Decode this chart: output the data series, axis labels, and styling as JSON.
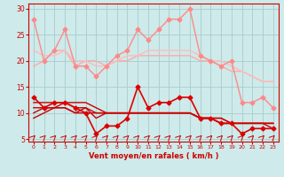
{
  "bg_color": "#ceeaea",
  "grid_color": "#aacccc",
  "xlabel": "Vent moyen/en rafales ( km/h )",
  "xlabel_color": "#cc0000",
  "tick_color": "#cc0000",
  "axis_color": "#cc0000",
  "ylim": [
    4.5,
    31
  ],
  "xlim": [
    -0.5,
    23.5
  ],
  "yticks": [
    5,
    10,
    15,
    20,
    25,
    30
  ],
  "xticks": [
    0,
    1,
    2,
    3,
    4,
    5,
    6,
    7,
    8,
    9,
    10,
    11,
    12,
    13,
    14,
    15,
    16,
    17,
    18,
    19,
    20,
    21,
    22,
    23
  ],
  "lines": [
    {
      "y": [
        28,
        20,
        22,
        26,
        19,
        19,
        17,
        19,
        21,
        22,
        26,
        24,
        26,
        28,
        28,
        30,
        21,
        20,
        19,
        20,
        12,
        12,
        13,
        11
      ],
      "color": "#ff8888",
      "lw": 1.0,
      "marker": "D",
      "ms": 2.5
    },
    {
      "y": [
        19,
        20,
        22,
        22,
        19,
        20,
        20,
        19,
        20,
        20,
        21,
        21,
        21,
        21,
        21,
        21,
        20,
        20,
        19,
        18,
        18,
        17,
        16,
        16
      ],
      "color": "#ffaaaa",
      "lw": 1.0,
      "marker": null,
      "ms": 0
    },
    {
      "y": [
        22,
        21,
        21,
        22,
        20,
        20,
        19,
        19,
        20,
        21,
        21,
        22,
        22,
        22,
        22,
        22,
        21,
        20,
        20,
        19,
        18,
        17,
        16,
        16
      ],
      "color": "#ffbbbb",
      "lw": 1.0,
      "marker": null,
      "ms": 0
    },
    {
      "y": [
        13,
        11,
        12,
        12,
        11,
        10,
        6,
        7.5,
        7.5,
        9,
        15,
        11,
        12,
        12,
        13,
        13,
        9,
        9,
        8,
        8,
        6,
        7,
        7,
        7
      ],
      "color": "#dd0000",
      "lw": 1.2,
      "marker": "D",
      "ms": 2.5
    },
    {
      "y": [
        9,
        10,
        11,
        11,
        10,
        11,
        9,
        10,
        10,
        10,
        10,
        10,
        10,
        10,
        10,
        10,
        9,
        9,
        8,
        8,
        8,
        8,
        8,
        7
      ],
      "color": "#cc0000",
      "lw": 1.0,
      "marker": null,
      "ms": 0
    },
    {
      "y": [
        10,
        11,
        11,
        11,
        10,
        10,
        10,
        10,
        10,
        10,
        10,
        10,
        10,
        10,
        10,
        10,
        9,
        9,
        9,
        8,
        8,
        8,
        8,
        8
      ],
      "color": "#cc0000",
      "lw": 1.0,
      "marker": null,
      "ms": 0
    },
    {
      "y": [
        11,
        11,
        11,
        12,
        11,
        11,
        10,
        10,
        10,
        10,
        10,
        10,
        10,
        10,
        10,
        10,
        9,
        9,
        8,
        8,
        8,
        8,
        8,
        8
      ],
      "color": "#cc0000",
      "lw": 1.0,
      "marker": null,
      "ms": 0
    },
    {
      "y": [
        12,
        12,
        12,
        12,
        12,
        12,
        11,
        10,
        10,
        10,
        10,
        10,
        10,
        10,
        10,
        10,
        9,
        9,
        9,
        8,
        8,
        8,
        8,
        8
      ],
      "color": "#cc0000",
      "lw": 1.0,
      "marker": null,
      "ms": 0
    }
  ]
}
